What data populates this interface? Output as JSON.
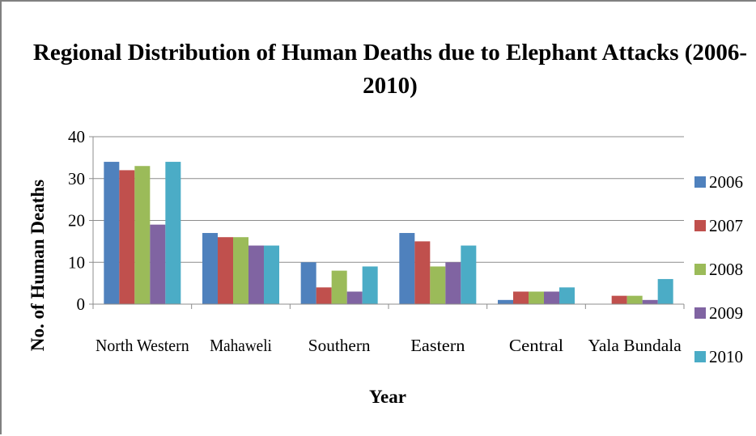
{
  "chart_data": {
    "type": "bar",
    "title_line1": "Regional Distribution of Human Deaths due to  Elephant Attacks (2006-",
    "title_line2": "2010)",
    "xlabel": "Year",
    "ylabel": "No. of Human Deaths",
    "ylim": [
      0,
      40
    ],
    "yticks": [
      0,
      10,
      20,
      30,
      40
    ],
    "grid": true,
    "legend_position": "right",
    "categories": [
      "North Western",
      "Mahaweli",
      "Southern",
      "Eastern",
      "Central",
      "Yala Bundala"
    ],
    "series": [
      {
        "name": "2006",
        "color": "#4F81BD",
        "values": [
          34,
          17,
          10,
          17,
          1,
          0
        ]
      },
      {
        "name": "2007",
        "color": "#C0504D",
        "values": [
          32,
          16,
          4,
          15,
          3,
          2
        ]
      },
      {
        "name": "2008",
        "color": "#9BBB59",
        "values": [
          33,
          16,
          8,
          9,
          3,
          2
        ]
      },
      {
        "name": "2009",
        "color": "#8064A2",
        "values": [
          19,
          14,
          3,
          10,
          3,
          1
        ]
      },
      {
        "name": "2010",
        "color": "#4BACC6",
        "values": [
          34,
          14,
          9,
          14,
          4,
          6
        ]
      }
    ]
  }
}
